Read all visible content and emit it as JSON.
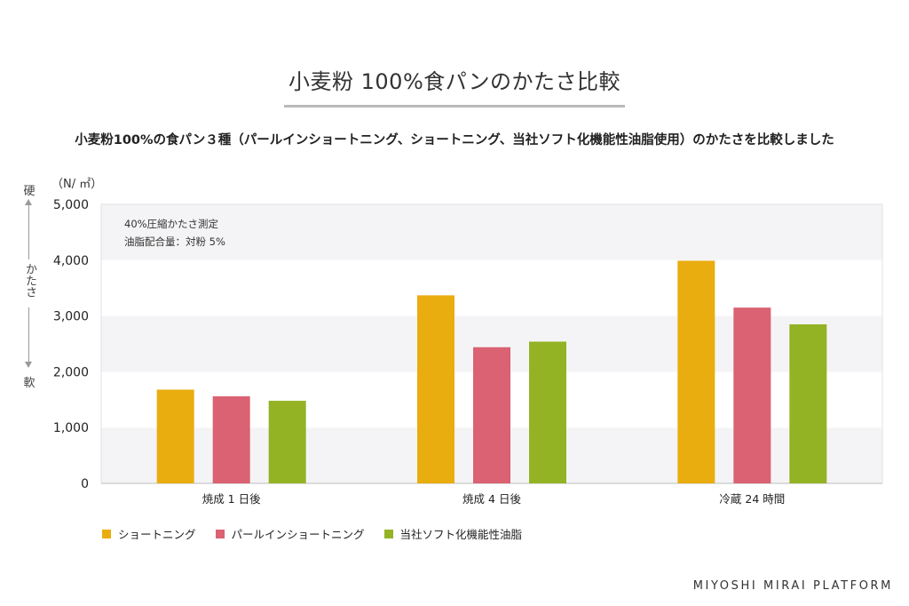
{
  "title": "小麦粉 100%食パンのかたさ比較",
  "subtitle": "小麦粉100%の食パン３種（パールインショートニング、ショートニング、当社ソフト化機能性油脂使用）のかたさを比較しました",
  "side_label": {
    "hard": "硬",
    "middle": "かたさ",
    "soft": "軟"
  },
  "note_lines": [
    "40%圧縮かたさ測定",
    "油脂配合量：対粉 5%"
  ],
  "brand": "MIYOSHI MIRAI PLATFORM",
  "chart_data": {
    "type": "bar",
    "unit": "（N/ ㎡）",
    "categories": [
      "焼成 1 日後",
      "焼成 4 日後",
      "冷蔵 24 時間"
    ],
    "series": [
      {
        "name": "ショートニング",
        "color": "#e9ad0f",
        "values": [
          1680,
          3370,
          3990
        ]
      },
      {
        "name": "パールインショートニング",
        "color": "#da6272",
        "values": [
          1560,
          2440,
          3150
        ]
      },
      {
        "name": "当社ソフト化機能性油脂",
        "color": "#93b324",
        "values": [
          1480,
          2540,
          2850
        ]
      }
    ],
    "ylim": [
      0,
      5000
    ],
    "yticks": [
      0,
      1000,
      2000,
      3000,
      4000,
      5000
    ],
    "ytick_labels": [
      "0",
      "1,000",
      "2,000",
      "3,000",
      "4,000",
      "5,000"
    ],
    "grid": "alternating bands",
    "legend": "bottom-left"
  }
}
